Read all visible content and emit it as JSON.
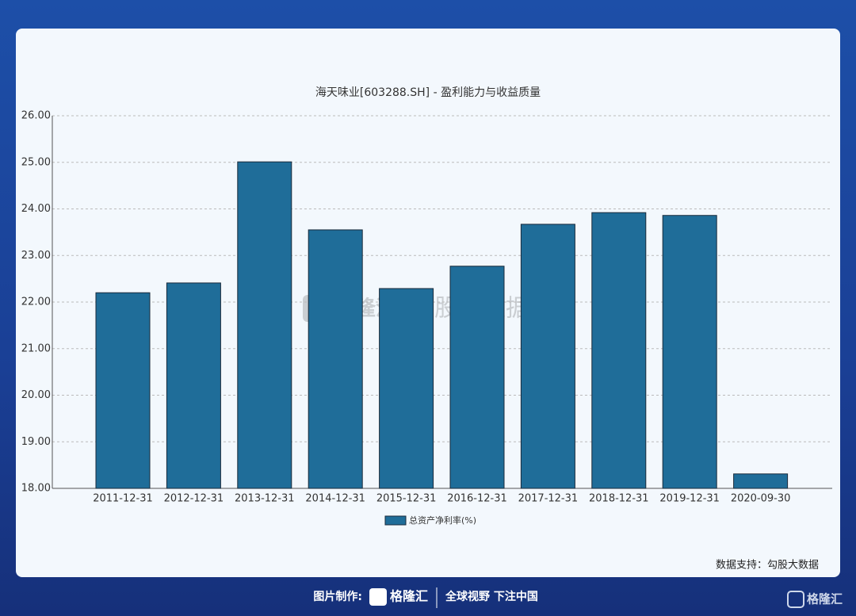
{
  "chart_data": {
    "type": "bar",
    "title": "海天味业[603288.SH] - 盈利能力与收益质量",
    "categories": [
      "2011-12-31",
      "2012-12-31",
      "2013-12-31",
      "2014-12-31",
      "2015-12-31",
      "2016-12-31",
      "2017-12-31",
      "2018-12-31",
      "2019-12-31",
      "2020-09-30"
    ],
    "series": [
      {
        "name": "总资产净利率(%)",
        "color": "#1f6d99",
        "values": [
          22.2,
          22.41,
          25.01,
          23.55,
          22.29,
          22.77,
          23.67,
          23.92,
          23.86,
          18.31
        ]
      }
    ],
    "ylim": [
      18,
      26
    ],
    "yticks": [
      {
        "value": 18,
        "label": "18.00"
      },
      {
        "value": 19,
        "label": "19.00"
      },
      {
        "value": 20,
        "label": "20.00"
      },
      {
        "value": 21,
        "label": "21.00"
      },
      {
        "value": 22,
        "label": "22.00"
      },
      {
        "value": 23,
        "label": "23.00"
      },
      {
        "value": 24,
        "label": "24.00"
      },
      {
        "value": 25,
        "label": "25.00"
      },
      {
        "value": 26,
        "label": "26.00"
      }
    ],
    "grid": true,
    "legend": "bottom"
  },
  "watermark": {
    "logo": "格隆汇",
    "text": "勾股大数据"
  },
  "source": "数据支持：勾股大数据",
  "footer": {
    "label": "图片制作:",
    "logo": "格隆汇",
    "slogan": "全球视野 下注中国",
    "corner_logo": "格隆汇"
  }
}
